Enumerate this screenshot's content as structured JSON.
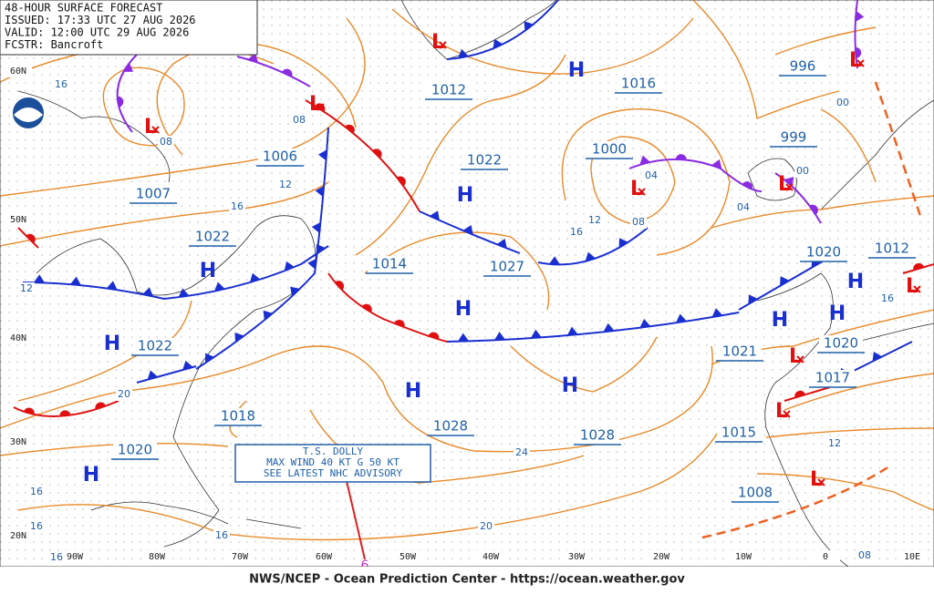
{
  "header": {
    "lines": [
      "48-HOUR SURFACE FORECAST",
      "ISSUED: 17:33 UTC 27 AUG 2026",
      "VALID: 12:00 UTC 29 AUG 2026",
      "FCSTR: Bancroft"
    ]
  },
  "latitudes": [
    "60N",
    "50N",
    "40N",
    "30N",
    "20N"
  ],
  "longitudes": [
    "90W",
    "80W",
    "70W",
    "60W",
    "50W",
    "40W",
    "30W",
    "20W",
    "10W",
    "0",
    "10E"
  ],
  "highs": [
    "H",
    "H",
    "H",
    "H",
    "H",
    "H",
    "H",
    "H",
    "H",
    "H",
    "H"
  ],
  "lows": [
    "L",
    "L",
    "L",
    "L",
    "L",
    "L",
    "L",
    "L",
    "L",
    "L"
  ],
  "pressures": [
    "1012",
    "1016",
    "996",
    "999",
    "1000",
    "1022",
    "1006",
    "1007",
    "1022",
    "1014",
    "1027",
    "1020",
    "1012",
    "1021",
    "1020",
    "1017",
    "1015",
    "1008",
    "1022",
    "1018",
    "1028",
    "1028",
    "1020"
  ],
  "isobar_labels": [
    "16",
    "08",
    "08",
    "12",
    "16",
    "12",
    "20",
    "24",
    "16",
    "12",
    "04",
    "08",
    "04",
    "00",
    "00",
    "16",
    "12",
    "20",
    "16",
    "16",
    "16",
    "16",
    "08"
  ],
  "storm": {
    "lines": [
      "T.S. DOLLY",
      "MAX WIND 40 KT G 50 KT",
      "SEE LATEST NHC ADVISORY"
    ],
    "marker": "6"
  },
  "footer": "NWS/NCEP - Ocean Prediction Center - https://ocean.weather.gov"
}
